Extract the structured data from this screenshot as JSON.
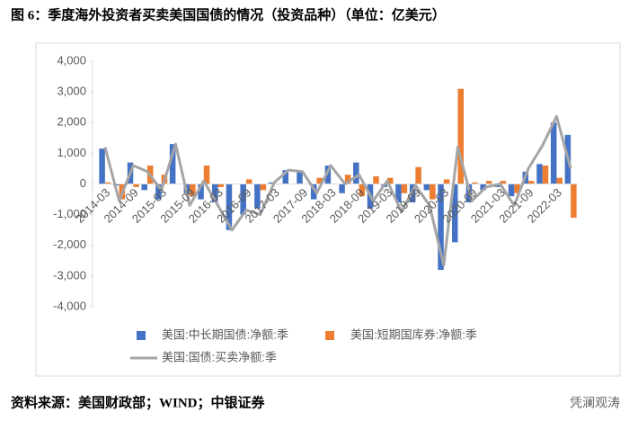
{
  "header": {
    "title": "图 6：季度海外投资者买卖美国国债的情况（投资品种）（单位：亿美元）"
  },
  "footer": {
    "source": "资料来源：美国财政部；WIND；中银证券",
    "watermark": "凭澜观涛"
  },
  "chart_data": {
    "type": "bar-line",
    "categories": [
      "2014-03",
      null,
      "2014-09",
      null,
      "2015-03",
      null,
      "2015-09",
      null,
      "2016-03",
      null,
      "2016-09",
      null,
      "2017-03",
      null,
      "2017-09",
      null,
      "2018-03",
      null,
      "2018-09",
      null,
      "2019-03",
      null,
      "2019-09",
      null,
      "2020-03",
      null,
      "2020-09",
      null,
      "2021-03",
      null,
      "2021-09",
      null,
      "2022-03",
      null
    ],
    "series": [
      {
        "name": "美国:中长期国债:净额:季",
        "type": "bar",
        "color": "#4472c4",
        "values": [
          1150,
          -50,
          700,
          -200,
          -500,
          1300,
          -300,
          -500,
          -600,
          -1500,
          -1000,
          -800,
          50,
          450,
          400,
          -500,
          600,
          -300,
          700,
          -800,
          -100,
          -600,
          -600,
          -200,
          -2800,
          -1900,
          -600,
          -200,
          -100,
          -400,
          400,
          650,
          2000,
          1600
        ]
      },
      {
        "name": "美国:短期国库券:净额:季",
        "type": "bar",
        "color": "#ed7d31",
        "values": [
          50,
          -500,
          -100,
          600,
          300,
          0,
          -400,
          600,
          -100,
          0,
          150,
          -200,
          0,
          0,
          0,
          200,
          0,
          300,
          -400,
          250,
          200,
          -300,
          550,
          -500,
          150,
          3100,
          50,
          100,
          100,
          -300,
          100,
          600,
          200,
          -1100
        ]
      },
      {
        "name": "美国:国债:买卖净额:季",
        "type": "line",
        "color": "#a5a5a5",
        "values": [
          1200,
          -550,
          600,
          400,
          -200,
          1300,
          -700,
          100,
          -700,
          -1500,
          -850,
          -1000,
          50,
          450,
          400,
          -300,
          600,
          0,
          300,
          -550,
          100,
          -900,
          -50,
          -700,
          -2650,
          1200,
          -550,
          -100,
          0,
          -700,
          500,
          1250,
          2200,
          500
        ]
      }
    ],
    "ylim": [
      -4000,
      4000
    ],
    "yticks": [
      {
        "value": -4000,
        "label": "-4,000"
      },
      {
        "value": -3000,
        "label": "-3,000"
      },
      {
        "value": -2000,
        "label": "-2,000"
      },
      {
        "value": -1000,
        "label": "-1,000"
      },
      0,
      {
        "value": 1000,
        "label": "1,000"
      },
      {
        "value": 2000,
        "label": "2,000"
      },
      {
        "value": 3000,
        "label": "3,000"
      },
      {
        "value": 4000,
        "label": "4,000"
      }
    ],
    "grid": false
  }
}
